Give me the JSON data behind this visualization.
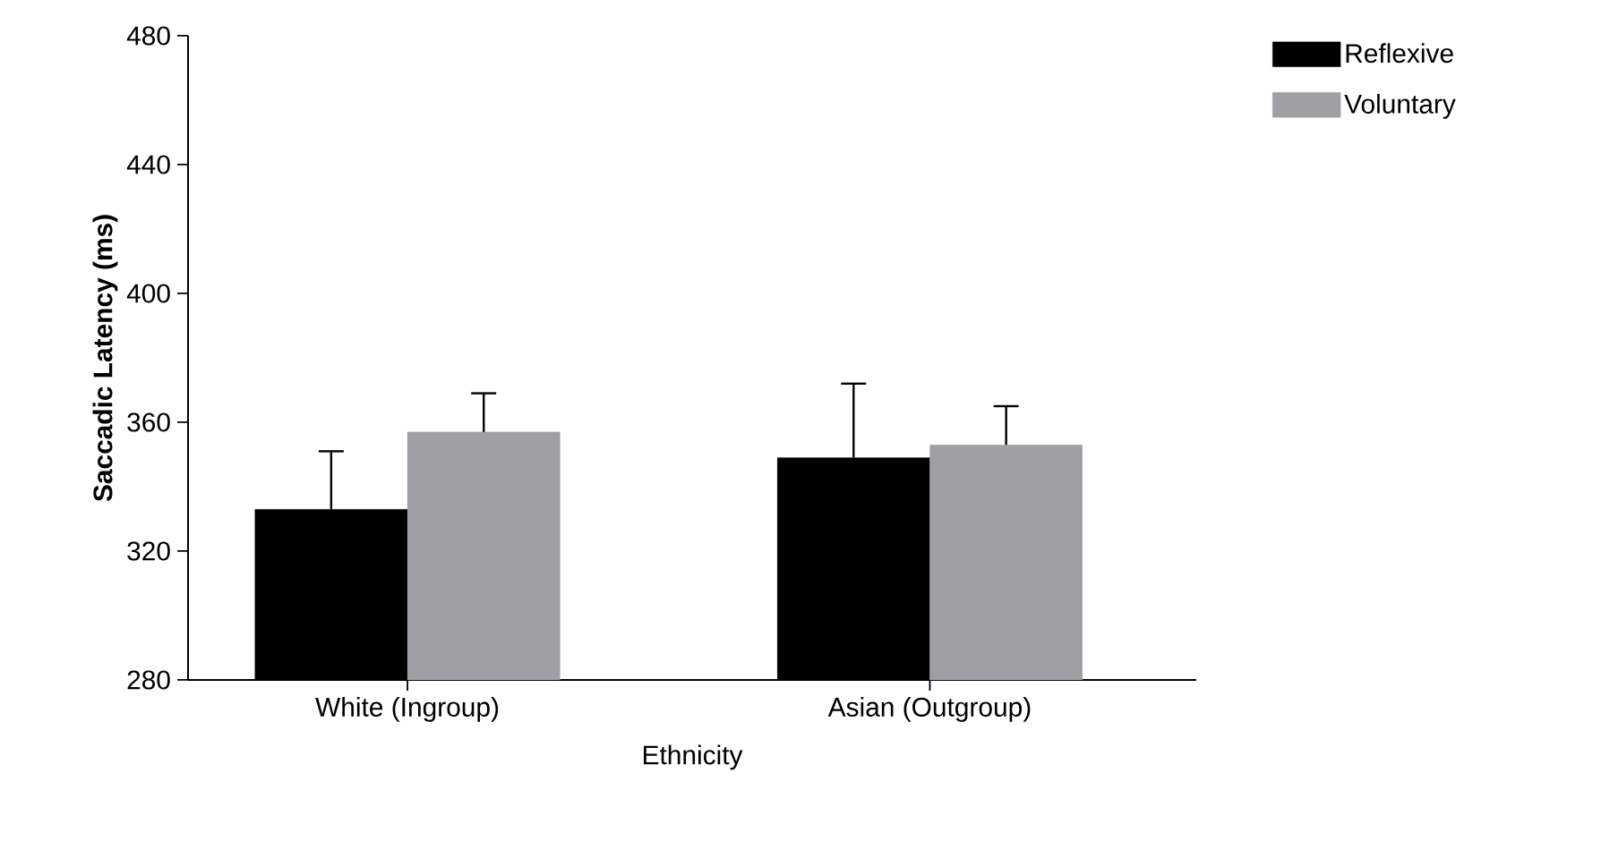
{
  "chart_data": {
    "type": "bar",
    "xlabel": "Ethnicity",
    "ylabel": "Saccadic Latency (ms)",
    "categories": [
      "White (Ingroup)",
      "Asian (Outgroup)"
    ],
    "series": [
      {
        "name": "Reflexive",
        "color": "#000000",
        "values": [
          333,
          349
        ],
        "errors": [
          [
            333,
            351
          ],
          [
            349,
            372
          ]
        ]
      },
      {
        "name": "Voluntary",
        "color": "#a0a0a4",
        "values": [
          357,
          353
        ],
        "errors": [
          [
            357,
            369
          ],
          [
            353,
            365
          ]
        ]
      }
    ],
    "ylim": [
      280,
      480
    ],
    "yticks": [
      280,
      320,
      360,
      400,
      440,
      480
    ],
    "grid": false,
    "legend": "top right"
  }
}
